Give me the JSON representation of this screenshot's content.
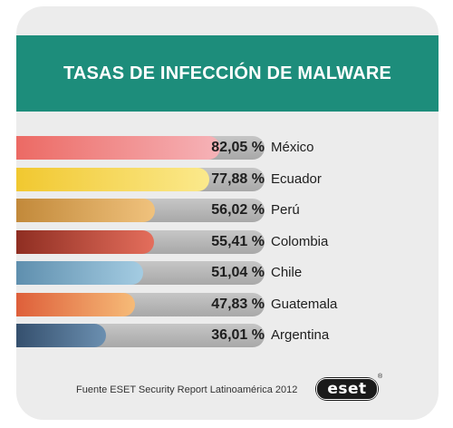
{
  "title": "TASAS DE INFECCIÓN DE MALWARE",
  "footer": "Fuente ESET Security Report Latinoamérica 2012",
  "logo_text": "eset",
  "logo_reg": "®",
  "colors": {
    "header": "#1d8d7b",
    "track": "#b4b4b4",
    "card": "#ececec"
  },
  "chart_data": {
    "type": "bar",
    "orientation": "horizontal",
    "title": "TASAS DE INFECCIÓN DE MALWARE",
    "unit": "%",
    "categories": [
      "México",
      "Ecuador",
      "Perú",
      "Colombia",
      "Chile",
      "Guatemala",
      "Argentina"
    ],
    "values": [
      82.05,
      77.88,
      56.02,
      55.41,
      51.04,
      47.83,
      36.01
    ],
    "value_labels": [
      "82,05 %",
      "77,88 %",
      "56,02 %",
      "55,41 %",
      "51,04 %",
      "47,83 %",
      "36,01 %"
    ],
    "bar_colors": [
      [
        "#ec6a64",
        "#f6b3b8"
      ],
      [
        "#f1c830",
        "#fbe98c"
      ],
      [
        "#c2893a",
        "#f0c27d"
      ],
      [
        "#8f2e22",
        "#e46e5c"
      ],
      [
        "#5f8fae",
        "#a4cce2"
      ],
      [
        "#de5f3a",
        "#f6bb78"
      ],
      [
        "#35506e",
        "#6b8fb0"
      ]
    ],
    "xlim": [
      0,
      100
    ],
    "grid": false,
    "legend": "none",
    "source": "Fuente ESET Security Report Latinoamérica 2012"
  }
}
